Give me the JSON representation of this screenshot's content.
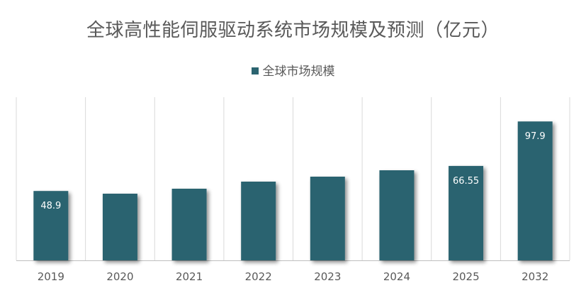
{
  "chart_data": {
    "type": "bar",
    "title": "全球高性能伺服驱动系统市场规模及预测（亿元）",
    "categories": [
      "2019",
      "2020",
      "2021",
      "2022",
      "2023",
      "2024",
      "2025",
      "2032"
    ],
    "series": [
      {
        "name": "全球市场规模",
        "values": [
          48.9,
          47.0,
          50.5,
          55.5,
          59.0,
          63.5,
          66.55,
          97.9
        ],
        "data_labels": [
          "48.9",
          "",
          "",
          "",
          "",
          "",
          "66.55",
          "97.9"
        ]
      }
    ],
    "ylim": [
      0,
      115
    ],
    "grid": "vertical",
    "legend_position": "top",
    "colors": {
      "bar": "#2B6470",
      "grid": "#d9d9d9",
      "axis": "#bfbfbf",
      "text": "#595959",
      "data_label": "#ffffff"
    }
  }
}
